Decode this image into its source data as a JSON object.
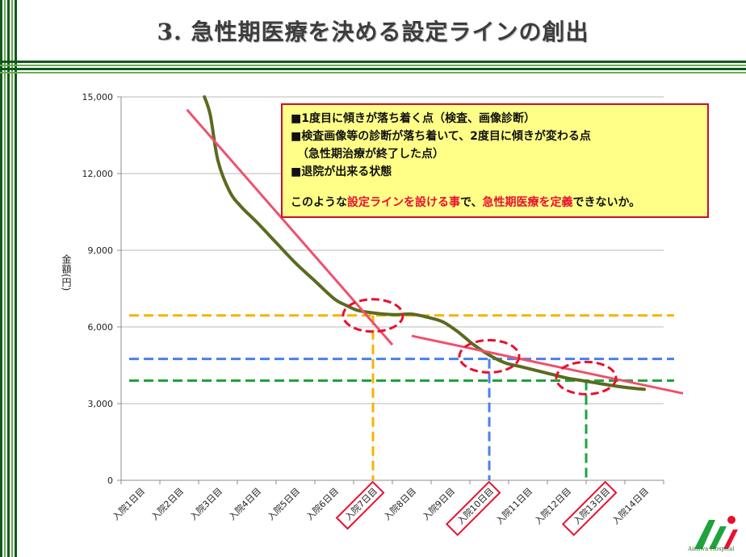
{
  "header": {
    "title": "3.  急性期医療を決める設定ラインの創出"
  },
  "colors": {
    "frame_dark": "#0f5a1c",
    "frame_light": "#6aa84f",
    "curve": "#5a6b20",
    "trend": "#f0506e",
    "ellipse": "#e8102e",
    "orange_line": "#f4b400",
    "blue_line": "#4a7ff0",
    "green_line": "#1fa33c",
    "note_bg": "#ffff88",
    "note_border": "#c8102e"
  },
  "note": {
    "line1": "■1度目に傾きが落ち着く点（検査、画像診断）",
    "line2": "■検査画像等の診断が落ち着いて、2度目に傾きが変わる点",
    "line3": "（急性期治療が終了した点）",
    "line4": "■退院が出来る状態",
    "summary_prefix": "このような",
    "summary_highlight1": "設定ラインを設ける事",
    "summary_mid": "で、",
    "summary_highlight2": "急性期医療を定義",
    "summary_suffix": "できないか。"
  },
  "logo": {
    "icon": "aizawa-hospital-logo",
    "text": "Aizawa Hospital"
  },
  "chart_data": {
    "type": "line",
    "ylabel": "金額(円)",
    "xlabel": "",
    "ylim": [
      0,
      15000
    ],
    "yticks": [
      "0",
      "3,000",
      "6,000",
      "9,000",
      "12,000",
      "15,000"
    ],
    "ytick_values": [
      0,
      3000,
      6000,
      9000,
      12000,
      15000
    ],
    "grid": true,
    "categories": [
      "入院1日目",
      "入院2日目",
      "入院3日目",
      "入院4日目",
      "入院5日目",
      "入院6日目",
      "入院7日目",
      "入院8日目",
      "入院9日目",
      "入院10日目",
      "入院11日目",
      "入院12日目",
      "入院13日目",
      "入院14日目"
    ],
    "highlighted_categories": [
      "入院7日目",
      "入院10日目",
      "入院13日目"
    ],
    "series": [
      {
        "x": [
          2.65,
          2.8,
          3.0,
          3.3,
          3.6,
          4.0,
          4.5,
          5.0,
          5.5,
          6.0,
          6.3,
          6.6,
          7.0,
          7.3,
          7.6,
          8.0,
          8.4,
          8.8,
          9.2,
          9.6,
          10.0,
          10.4,
          10.8,
          11.2,
          11.6,
          12.0,
          12.4,
          12.8,
          13.2,
          13.6,
          14.0
        ],
        "values": [
          15000,
          14300,
          12500,
          11300,
          10700,
          10100,
          9300,
          8500,
          7800,
          7100,
          6850,
          6650,
          6550,
          6500,
          6480,
          6500,
          6380,
          6200,
          5800,
          5300,
          4900,
          4600,
          4450,
          4300,
          4150,
          4000,
          3900,
          3800,
          3700,
          3620,
          3560
        ]
      }
    ],
    "trend_lines": [
      {
        "x": [
          2.2,
          7.5
        ],
        "values": [
          14500,
          5300
        ]
      },
      {
        "x": [
          8.0,
          15.0
        ],
        "values": [
          5650,
          3400
        ]
      }
    ],
    "reference_lines": [
      {
        "y": 6450,
        "x_end": 7,
        "color": "orange"
      },
      {
        "y": 4750,
        "x_end": 10,
        "color": "blue"
      },
      {
        "y": 3900,
        "x_end": 12.5,
        "color": "green"
      }
    ],
    "highlight_points": [
      {
        "x": 7.0,
        "y": 6450
      },
      {
        "x": 10.0,
        "y": 4850
      },
      {
        "x": 12.5,
        "y": 4000
      }
    ]
  }
}
